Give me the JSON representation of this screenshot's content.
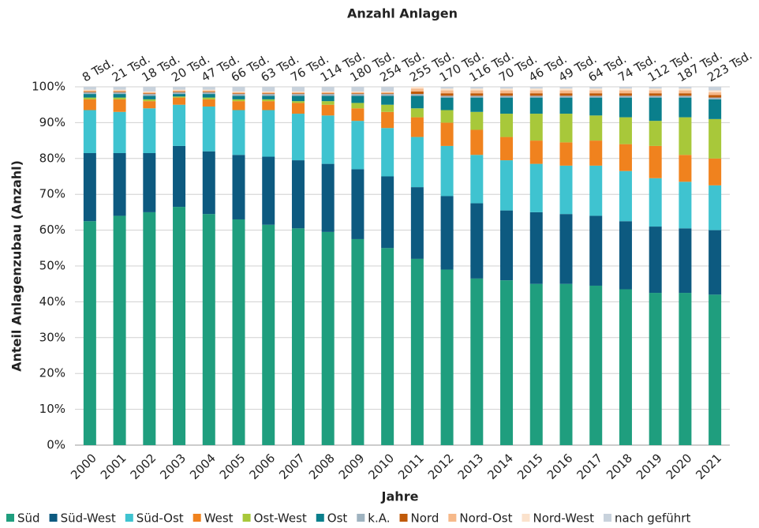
{
  "chart_data": {
    "type": "stacked_bar",
    "title": "Anzahl Anlagen",
    "xlabel": "Jahre",
    "ylabel": "Anteil Anlagenzubau (Anzahl)",
    "annotations": [
      "8 Tsd.",
      "21 Tsd.",
      "18 Tsd.",
      "20 Tsd.",
      "47 Tsd.",
      "66 Tsd.",
      "63 Tsd.",
      "76 Tsd.",
      "114 Tsd.",
      "180 Tsd.",
      "254 Tsd.",
      "255 Tsd.",
      "170 Tsd.",
      "116 Tsd.",
      "70 Tsd.",
      "46 Tsd.",
      "49 Tsd.",
      "64 Tsd.",
      "74 Tsd.",
      "112 Tsd.",
      "187 Tsd.",
      "223 Tsd."
    ],
    "categories": [
      "2000",
      "2001",
      "2002",
      "2003",
      "2004",
      "2005",
      "2006",
      "2007",
      "2008",
      "2009",
      "2010",
      "2011",
      "2012",
      "2013",
      "2014",
      "2015",
      "2016",
      "2017",
      "2018",
      "2019",
      "2020",
      "2021"
    ],
    "ylim": [
      0,
      100
    ],
    "yticks": [
      {
        "value": 0,
        "label": "0%"
      },
      {
        "value": 10,
        "label": "10%"
      },
      {
        "value": 20,
        "label": "20%"
      },
      {
        "value": 30,
        "label": "30%"
      },
      {
        "value": 40,
        "label": "40%"
      },
      {
        "value": 50,
        "label": "50%"
      },
      {
        "value": 60,
        "label": "60%"
      },
      {
        "value": 70,
        "label": "70%"
      },
      {
        "value": 80,
        "label": "80%"
      },
      {
        "value": 90,
        "label": "90%"
      },
      {
        "value": 100,
        "label": "100%"
      }
    ],
    "grid": true,
    "legend": "bottom",
    "series": [
      {
        "name": "Süd",
        "color": "#1f9e7e",
        "values": [
          62.5,
          64,
          65,
          66.5,
          64.5,
          63,
          61.5,
          60.5,
          59.5,
          57.5,
          55,
          52,
          49,
          46.5,
          46,
          45,
          45,
          44.5,
          43.5,
          42.5,
          42.5,
          42
        ]
      },
      {
        "name": "Süd-West",
        "color": "#0d5a80",
        "values": [
          19,
          17.5,
          16.5,
          17,
          17.5,
          18,
          19,
          19,
          19,
          19.5,
          20,
          20,
          20.5,
          21,
          19.5,
          20,
          19.5,
          19.5,
          19,
          18.5,
          18,
          18
        ]
      },
      {
        "name": "Süd-Ost",
        "color": "#3fc3d0",
        "values": [
          12,
          11.5,
          12.5,
          11.5,
          12.5,
          12.5,
          13,
          13,
          13.5,
          13.5,
          13.5,
          14,
          14,
          13.5,
          14,
          13.5,
          13.5,
          14,
          14,
          13.5,
          13,
          12.5
        ]
      },
      {
        "name": "West",
        "color": "#f0821e",
        "values": [
          3,
          3.5,
          2,
          2,
          2,
          2.5,
          2.5,
          3,
          3,
          3.5,
          4.5,
          5.5,
          6.5,
          7,
          6.5,
          6.5,
          6.5,
          7,
          7.5,
          9,
          7.5,
          7.5
        ]
      },
      {
        "name": "Ost-West",
        "color": "#a8c83a",
        "values": [
          0.5,
          0.5,
          0.5,
          0.3,
          0.5,
          0.5,
          0.5,
          0.5,
          1,
          1.5,
          2,
          2.5,
          3.5,
          5,
          6.5,
          7.5,
          8,
          7,
          7.5,
          7,
          10.5,
          11
        ]
      },
      {
        "name": "Ost",
        "color": "#0a7f8c",
        "values": [
          1,
          1,
          1,
          0.7,
          1,
          1,
          1,
          1.5,
          1.5,
          2,
          2.5,
          3.5,
          3.5,
          4,
          4.5,
          4.5,
          4.5,
          5,
          5.5,
          6.5,
          5.5,
          5.5
        ]
      },
      {
        "name": "k.A.",
        "color": "#9fb3c0",
        "values": [
          0.5,
          0.5,
          0.5,
          0.5,
          0.5,
          0.5,
          0.5,
          0.5,
          0.5,
          0.5,
          0.5,
          0.5,
          0.5,
          0.5,
          0.5,
          0.5,
          0.5,
          0.5,
          0.5,
          0.5,
          0.5,
          0.5
        ]
      },
      {
        "name": "Nord",
        "color": "#c05a0a",
        "values": [
          0.2,
          0.2,
          0.2,
          0.2,
          0.2,
          0.2,
          0.2,
          0.2,
          0.2,
          0.2,
          0.2,
          0.7,
          0.7,
          0.7,
          0.7,
          0.7,
          0.7,
          0.7,
          0.7,
          0.7,
          0.7,
          0.7
        ]
      },
      {
        "name": "Nord-Ost",
        "color": "#f6b98a",
        "values": [
          0.3,
          0.3,
          0.3,
          0.3,
          0.3,
          0.3,
          0.3,
          0.3,
          0.3,
          0.3,
          0.3,
          0.8,
          0.8,
          0.8,
          0.8,
          0.8,
          0.8,
          0.8,
          0.8,
          0.8,
          0.8,
          0.8
        ]
      },
      {
        "name": "Nord-West",
        "color": "#fbe2cc",
        "values": [
          0.2,
          0.2,
          0.2,
          0.2,
          0.2,
          0.2,
          0.2,
          0.2,
          0.2,
          0.2,
          0.2,
          0.5,
          0.5,
          0.5,
          0.5,
          0.5,
          0.5,
          0.5,
          0.5,
          0.5,
          0.5,
          0.5
        ]
      },
      {
        "name": "nach geführt",
        "color": "#c8d2dc",
        "values": [
          0.8,
          0.8,
          1.3,
          0.8,
          0.8,
          1.3,
          1.3,
          1.3,
          1.3,
          1.3,
          1.3,
          0,
          0.5,
          0.5,
          0.5,
          0.5,
          0.5,
          0.5,
          0.5,
          0.5,
          0.5,
          1.0
        ]
      }
    ]
  }
}
